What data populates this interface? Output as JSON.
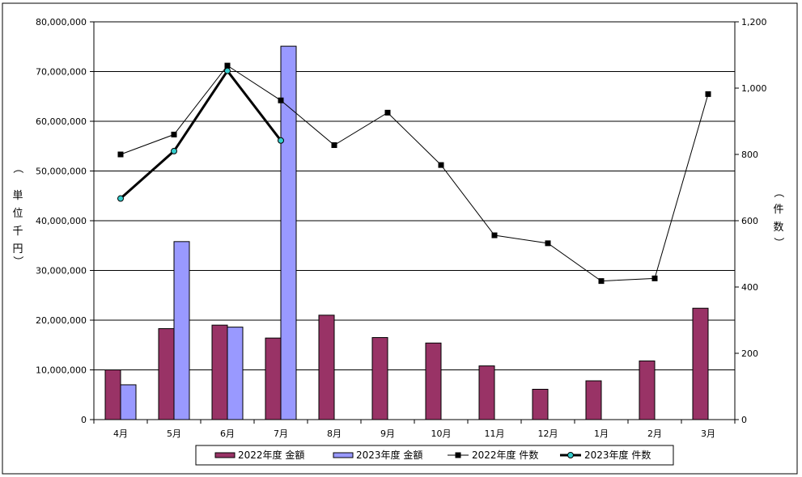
{
  "chart_data": {
    "type": "bar",
    "categories": [
      "4月",
      "5月",
      "6月",
      "7月",
      "8月",
      "9月",
      "10月",
      "11月",
      "12月",
      "1月",
      "2月",
      "3月"
    ],
    "series": [
      {
        "name": "2022年度 金額",
        "kind": "bar",
        "axis": "left",
        "color": "#993366",
        "values": [
          10000000,
          18300000,
          19000000,
          16400000,
          21000000,
          16500000,
          15400000,
          10800000,
          6100000,
          7800000,
          11800000,
          22400000
        ]
      },
      {
        "name": "2023年度 金額",
        "kind": "bar",
        "axis": "left",
        "color": "#9999ff",
        "values": [
          7000000,
          35800000,
          18600000,
          75100000,
          null,
          null,
          null,
          null,
          null,
          null,
          null,
          null
        ]
      },
      {
        "name": "2022年度 件数",
        "kind": "line",
        "axis": "right",
        "color": "#000000",
        "marker": "square",
        "values": [
          800,
          860,
          1068,
          963,
          828,
          926,
          768,
          556,
          532,
          418,
          426,
          982
        ]
      },
      {
        "name": "2023年度 件数",
        "kind": "line",
        "axis": "right",
        "color": "#000000",
        "marker": "circle",
        "marker_color": "#33cccc",
        "values": [
          667,
          810,
          1052,
          842,
          null,
          null,
          null,
          null,
          null,
          null,
          null,
          null
        ]
      }
    ],
    "y_left": {
      "label": [
        "単",
        "位",
        "千",
        "円",
        "（",
        "）"
      ],
      "ylim": [
        0,
        80000000
      ],
      "ticks": [
        "0",
        "10,000,000",
        "20,000,000",
        "30,000,000",
        "40,000,000",
        "50,000,000",
        "60,000,000",
        "70,000,000",
        "80,000,000"
      ]
    },
    "y_right": {
      "label": [
        "（",
        "件",
        "数",
        "）"
      ],
      "ylim": [
        0,
        1200
      ],
      "ticks": [
        "0",
        "200",
        "400",
        "600",
        "800",
        "1,000",
        "1,200"
      ]
    },
    "grid": true,
    "legend_position": "bottom",
    "legend": [
      "2022年度 金額",
      "2023年度 金額",
      "2022年度 件数",
      "2023年度 件数"
    ]
  }
}
